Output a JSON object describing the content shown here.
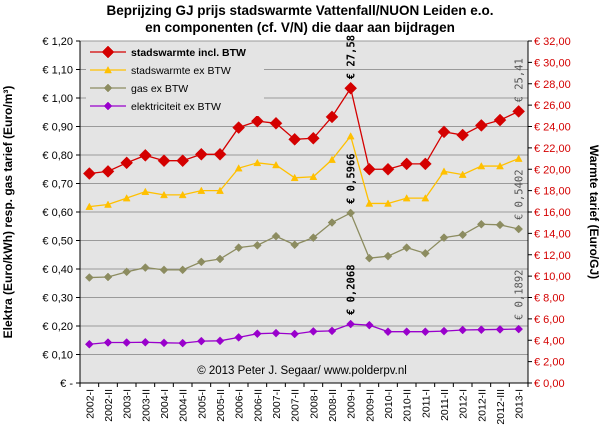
{
  "chart_data": {
    "type": "line",
    "title_line1": "Beprijzing GJ prijs stadswarmte Vattenfall/NUON Leiden e.o.",
    "title_line2": "en componenten (cf. V/N) die daar aan bijdragen",
    "ylabel_left": "Elektra (Euro/kWh) resp. gas tarief (Euro/m³)",
    "ylabel_right": "Warmte tarief (Euro/GJ)",
    "copyright": "© 2013 Peter J. Segaar/ www.polderpv.nl",
    "y_left_ticks": [
      "€ -",
      "€ 0,10",
      "€ 0,20",
      "€ 0,30",
      "€ 0,40",
      "€ 0,50",
      "€ 0,60",
      "€ 0,70",
      "€ 0,80",
      "€ 0,90",
      "€ 1,00",
      "€ 1,10",
      "€ 1,20"
    ],
    "y_right_ticks": [
      "€ 0,00",
      "€ 2,00",
      "€ 4,00",
      "€ 6,00",
      "€ 8,00",
      "€ 10,00",
      "€ 12,00",
      "€ 14,00",
      "€ 16,00",
      "€ 18,00",
      "€ 20,00",
      "€ 22,00",
      "€ 24,00",
      "€ 26,00",
      "€ 28,00",
      "€ 30,00",
      "€ 32,00"
    ],
    "ylim_left": [
      0,
      1.2
    ],
    "ylim_right": [
      0,
      32
    ],
    "grid": true,
    "legend_position": "top-left",
    "categories": [
      "2002-I",
      "2002-II",
      "2003-I",
      "2003-II",
      "2004-I",
      "2004-II",
      "2005-I",
      "2005-II",
      "2006-I",
      "2006-II",
      "2007-I",
      "2007-II",
      "2008-I",
      "2008-II",
      "2009-I",
      "2009-II",
      "2010-I",
      "2010-II",
      "2011-I",
      "2011-II",
      "2012-I",
      "2012-II",
      "2012-III",
      "2013-I"
    ],
    "series": [
      {
        "name": "stadswarmte incl. BTW",
        "axis": "right",
        "color": "#d40000",
        "marker": "diamond",
        "values": [
          19.6,
          19.8,
          20.6,
          21.3,
          20.8,
          20.8,
          21.4,
          21.4,
          23.9,
          24.5,
          24.3,
          22.8,
          22.9,
          24.9,
          27.58,
          20.0,
          20.0,
          20.5,
          20.5,
          23.5,
          23.2,
          24.1,
          24.6,
          25.41
        ]
      },
      {
        "name": "stadswarmte ex BTW",
        "axis": "right",
        "color": "#ffc000",
        "marker": "triangle",
        "values": [
          16.5,
          16.7,
          17.3,
          17.9,
          17.6,
          17.6,
          18.0,
          18.0,
          20.1,
          20.6,
          20.4,
          19.2,
          19.3,
          20.9,
          23.1,
          16.8,
          16.8,
          17.3,
          17.3,
          19.8,
          19.5,
          20.3,
          20.3,
          21.0
        ]
      },
      {
        "name": "gas ex BTW",
        "axis": "left",
        "color": "#8c8c60",
        "marker": "diamond",
        "values": [
          0.37,
          0.372,
          0.39,
          0.405,
          0.397,
          0.397,
          0.425,
          0.435,
          0.475,
          0.483,
          0.515,
          0.485,
          0.51,
          0.563,
          0.5966,
          0.438,
          0.445,
          0.475,
          0.455,
          0.51,
          0.52,
          0.557,
          0.555,
          0.5402
        ]
      },
      {
        "name": "elektriciteit ex BTW",
        "axis": "left",
        "color": "#9900cc",
        "marker": "diamond",
        "values": [
          0.136,
          0.142,
          0.142,
          0.143,
          0.141,
          0.14,
          0.147,
          0.148,
          0.16,
          0.173,
          0.175,
          0.172,
          0.181,
          0.183,
          0.2068,
          0.203,
          0.18,
          0.18,
          0.18,
          0.182,
          0.186,
          0.187,
          0.188,
          0.1892
        ]
      }
    ],
    "annotations": [
      {
        "text": "€ 27,58",
        "series": 0,
        "index": 14,
        "color": "#000000",
        "bold": true
      },
      {
        "text": "€ 25,41",
        "series": 0,
        "index": 23,
        "color": "#555555",
        "bold": false
      },
      {
        "text": "€ 0,5966",
        "series": 2,
        "index": 14,
        "color": "#000000",
        "bold": true
      },
      {
        "text": "€ 0,5402",
        "series": 2,
        "index": 23,
        "color": "#555555",
        "bold": false
      },
      {
        "text": "€ 0,2068",
        "series": 3,
        "index": 14,
        "color": "#000000",
        "bold": true
      },
      {
        "text": "€ 0,1892",
        "series": 3,
        "index": 23,
        "color": "#555555",
        "bold": false
      }
    ]
  }
}
